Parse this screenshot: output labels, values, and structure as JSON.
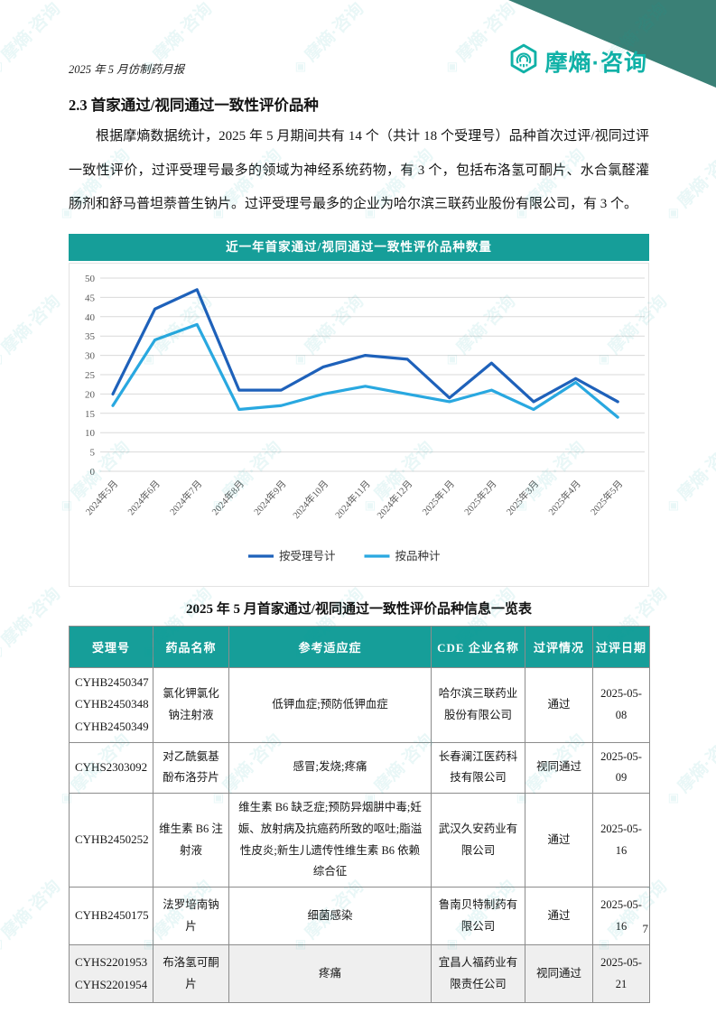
{
  "page": {
    "header_left": "2025 年 5 月仿制药月报",
    "page_number": "7",
    "watermark_text": "摩熵·咨询"
  },
  "logo": {
    "text": "摩熵·咨询"
  },
  "colors": {
    "brand_teal": "#10b1a7",
    "banner_teal": "#169e99",
    "corner_triangle": "#3a8076",
    "series_dark_blue": "#1e61ba",
    "series_light_blue": "#29a8e0"
  },
  "section": {
    "heading": "2.3 首家通过/视同通过一致性评价品种",
    "paragraph": "根据摩熵数据统计，2025 年 5 月期间共有 14 个（共计 18 个受理号）品种首次过评/视同过评一致性评价，过评受理号最多的领域为神经系统药物，有 3 个，包括布洛氢可酮片、水合氯醛灌肠剂和舒马普坦萘普生钠片。过评受理号最多的企业为哈尔滨三联药业股份有限公司，有 3 个。"
  },
  "chart_data": {
    "type": "line",
    "title": "近一年首家通过/视同通过一致性评价品种数量",
    "categories": [
      "2024年5月",
      "2024年6月",
      "2024年7月",
      "2024年8月",
      "2024年9月",
      "2024年10月",
      "2024年11月",
      "2024年12月",
      "2025年1月",
      "2025年2月",
      "2025年3月",
      "2025年4月",
      "2025年5月"
    ],
    "series": [
      {
        "name": "按受理号计",
        "color": "#1e61ba",
        "values": [
          20,
          42,
          47,
          21,
          21,
          27,
          30,
          29,
          19,
          28,
          18,
          24,
          18
        ]
      },
      {
        "name": "按品种计",
        "color": "#29a8e0",
        "values": [
          17,
          34,
          38,
          16,
          17,
          20,
          22,
          20,
          18,
          21,
          16,
          23,
          14
        ]
      }
    ],
    "ylim": [
      0,
      50
    ],
    "ytick_step": 5,
    "grid": true,
    "legend_position": "bottom"
  },
  "table": {
    "title": "2025 年 5 月首家通过/视同通过一致性评价品种信息一览表",
    "headers": [
      "受理号",
      "药品名称",
      "参考适应症",
      "CDE 企业名称",
      "过评情况",
      "过评日期"
    ],
    "rows": [
      {
        "shaded": false,
        "cells": [
          "CYHB2450347\nCYHB2450348\nCYHB2450349",
          "氯化钾氯化钠注射液",
          "低钾血症;预防低钾血症",
          "哈尔滨三联药业股份有限公司",
          "通过",
          "2025-05-08"
        ]
      },
      {
        "shaded": false,
        "cells": [
          "CYHS2303092",
          "对乙酰氨基酚布洛芬片",
          "感冒;发烧;疼痛",
          "长春澜江医药科技有限公司",
          "视同通过",
          "2025-05-09"
        ]
      },
      {
        "shaded": false,
        "cells": [
          "CYHB2450252",
          "维生素 B6 注射液",
          "维生素 B6 缺乏症;预防异烟肼中毒;妊娠、放射病及抗癌药所致的呕吐;脂溢性皮炎;新生儿遗传性维生素 B6 依赖综合征",
          "武汉久安药业有限公司",
          "通过",
          "2025-05-16"
        ]
      },
      {
        "shaded": false,
        "cells": [
          "CYHB2450175",
          "法罗培南钠片",
          "细菌感染",
          "鲁南贝特制药有限公司",
          "通过",
          "2025-05-16"
        ]
      },
      {
        "shaded": true,
        "cells": [
          "CYHS2201953\nCYHS2201954",
          "布洛氢可酮片",
          "疼痛",
          "宜昌人福药业有限责任公司",
          "视同通过",
          "2025-05-21"
        ]
      }
    ]
  }
}
